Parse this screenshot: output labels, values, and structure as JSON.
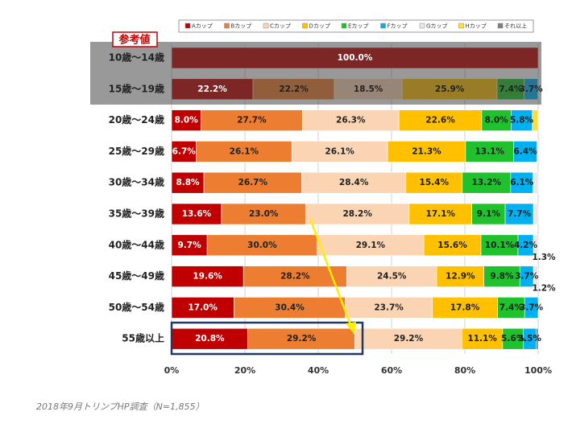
{
  "chart_data": {
    "type": "stacked-bar-horizontal",
    "badge": "参考値",
    "caption": "2018年9月トリンプHP調査（N=1,855）",
    "categories": [
      "10歳〜14歳",
      "15歳〜19歳",
      "20歳〜24歳",
      "25歳〜29歳",
      "30歳〜34歳",
      "35歳〜39歳",
      "40歳〜44歳",
      "45歳〜49歳",
      "50歳〜54歳",
      "55歳以上"
    ],
    "series": [
      {
        "name": "Aカップ",
        "color": "#c00000",
        "values": [
          100.0,
          22.2,
          8.0,
          6.7,
          8.8,
          13.6,
          9.7,
          19.6,
          17.0,
          20.8
        ],
        "value_labels": [
          "100.0%",
          "22.2%",
          "8.0%",
          "6.7%",
          "8.8%",
          "13.6%",
          "9.7%",
          "19.6%",
          "17.0%",
          "20.8%"
        ]
      },
      {
        "name": "Bカップ",
        "color": "#ed7d31",
        "values": [
          null,
          22.2,
          27.7,
          26.1,
          26.7,
          23.0,
          30.0,
          28.2,
          30.4,
          29.2
        ],
        "value_labels": [
          null,
          "22.2%",
          "27.7%",
          "26.1%",
          "26.7%",
          "23.0%",
          "30.0%",
          "28.2%",
          "30.4%",
          "29.2%"
        ]
      },
      {
        "name": "Cカップ",
        "color": "#fbd4b4",
        "values": [
          null,
          18.5,
          26.3,
          26.1,
          28.4,
          28.2,
          29.1,
          24.5,
          23.7,
          29.2
        ],
        "value_labels": [
          null,
          "18.5%",
          "26.3%",
          "26.1%",
          "28.4%",
          "28.2%",
          "29.1%",
          "24.5%",
          "23.7%",
          "29.2%"
        ]
      },
      {
        "name": "Dカップ",
        "color": "#ffc000",
        "values": [
          null,
          25.9,
          22.6,
          21.3,
          15.4,
          17.1,
          15.6,
          12.9,
          17.8,
          11.1
        ],
        "value_labels": [
          null,
          "25.9%",
          "22.6%",
          "21.3%",
          "15.4%",
          "17.1%",
          "15.6%",
          "12.9%",
          "17.8%",
          "11.1%"
        ]
      },
      {
        "name": "Eカップ",
        "color": "#1fc12c",
        "values": [
          null,
          7.4,
          8.0,
          13.1,
          13.2,
          9.1,
          10.1,
          9.8,
          7.4,
          5.6
        ],
        "value_labels": [
          null,
          "7.4%",
          "8.0%",
          "13.1%",
          "13.2%",
          "9.1%",
          "10.1%",
          "9.8%",
          "7.4%",
          "5.6%"
        ]
      },
      {
        "name": "Fカップ",
        "color": "#00b0f0",
        "values": [
          null,
          3.7,
          5.8,
          6.4,
          6.1,
          7.7,
          4.2,
          3.7,
          3.7,
          3.5
        ],
        "value_labels": [
          null,
          "3.7%",
          "5.8%",
          "6.4%",
          "6.1%",
          "7.7%",
          "4.2%",
          "3.7%",
          "3.7%",
          "3.5%"
        ]
      },
      {
        "name": "Gカップ",
        "color": "#e8e8e8",
        "values": [
          null,
          null,
          null,
          null,
          1.4,
          1.3,
          1.3,
          1.2,
          null,
          null
        ],
        "value_labels": [
          null,
          null,
          null,
          null,
          null,
          null,
          "1.3%",
          "1.2%",
          null,
          null
        ]
      },
      {
        "name": "Hカップ",
        "color": "#ffe033",
        "values": [
          null,
          null,
          1.6,
          0.3,
          null,
          null,
          null,
          null,
          null,
          null
        ],
        "value_labels": [
          null,
          null,
          null,
          null,
          null,
          null,
          null,
          null,
          null,
          null
        ]
      },
      {
        "name": "それ以上",
        "color": "#7f7f7f",
        "values": [
          null,
          null,
          null,
          null,
          null,
          null,
          null,
          null,
          null,
          0.6
        ],
        "value_labels": [
          null,
          null,
          null,
          null,
          null,
          null,
          null,
          null,
          null,
          null
        ]
      }
    ],
    "xlim": [
      0,
      100
    ],
    "xticks": [
      {
        "value": 0,
        "label": "0%"
      },
      {
        "value": 20,
        "label": "20%"
      },
      {
        "value": 40,
        "label": "40%"
      },
      {
        "value": 60,
        "label": "60%"
      },
      {
        "value": 80,
        "label": "80%"
      },
      {
        "value": 100,
        "label": "100%"
      }
    ],
    "grid": true
  }
}
